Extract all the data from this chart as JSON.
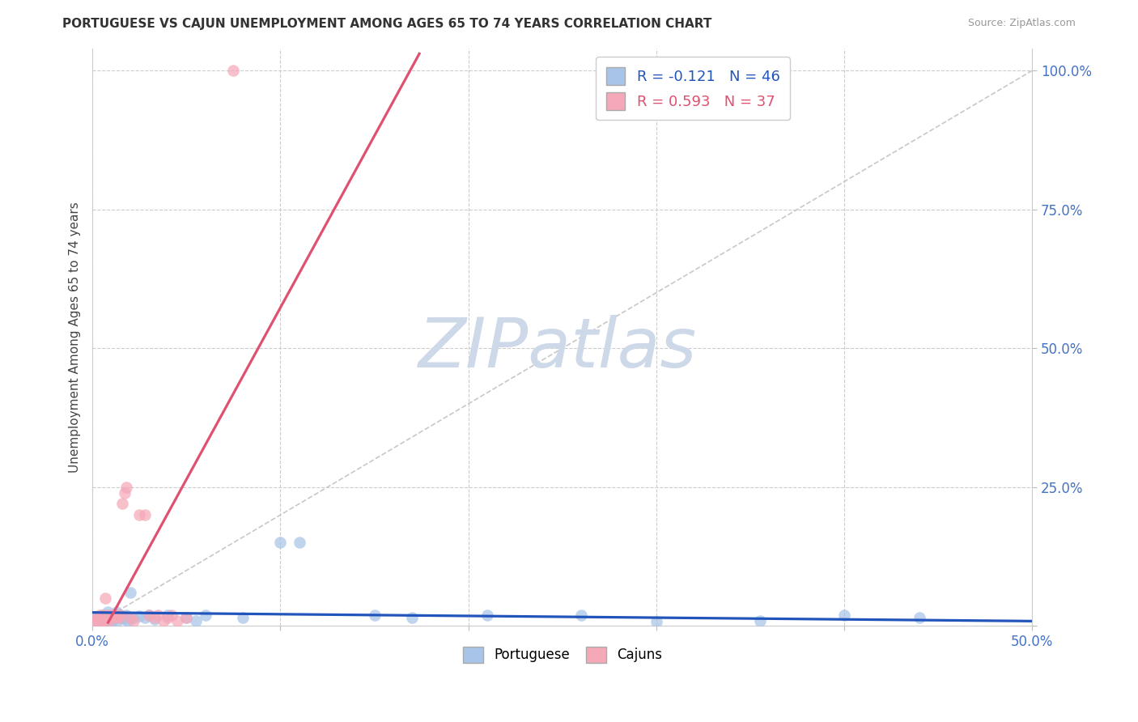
{
  "title": "PORTUGUESE VS CAJUN UNEMPLOYMENT AMONG AGES 65 TO 74 YEARS CORRELATION CHART",
  "source": "Source: ZipAtlas.com",
  "ylabel": "Unemployment Among Ages 65 to 74 years",
  "xlim": [
    0.0,
    0.5
  ],
  "ylim": [
    0.0,
    1.04
  ],
  "portuguese_R": -0.121,
  "portuguese_N": 46,
  "cajun_R": 0.593,
  "cajun_N": 37,
  "portuguese_color": "#a8c4e8",
  "cajun_color": "#f4a8b8",
  "portuguese_line_color": "#2255bb",
  "cajun_line_color": "#e05070",
  "diagonal_color": "#c8c8c8",
  "watermark_text": "ZIPatlas",
  "watermark_color": "#cdd8e8",
  "background_color": "#ffffff",
  "grid_color": "#cccccc",
  "tick_label_color": "#4472c4",
  "title_color": "#333333",
  "source_color": "#999999",
  "portuguese_x": [
    0.002,
    0.003,
    0.004,
    0.005,
    0.005,
    0.006,
    0.006,
    0.007,
    0.008,
    0.008,
    0.009,
    0.01,
    0.01,
    0.011,
    0.011,
    0.012,
    0.013,
    0.013,
    0.014,
    0.015,
    0.015,
    0.016,
    0.017,
    0.018,
    0.019,
    0.02,
    0.022,
    0.025,
    0.028,
    0.03,
    0.033,
    0.04,
    0.05,
    0.055,
    0.06,
    0.08,
    0.1,
    0.11,
    0.15,
    0.17,
    0.21,
    0.26,
    0.3,
    0.355,
    0.4,
    0.44
  ],
  "portuguese_y": [
    0.015,
    0.008,
    0.012,
    0.01,
    0.02,
    0.015,
    0.018,
    0.012,
    0.025,
    0.01,
    0.015,
    0.018,
    0.008,
    0.012,
    0.02,
    0.015,
    0.008,
    0.025,
    0.015,
    0.018,
    0.02,
    0.015,
    0.012,
    0.02,
    0.01,
    0.06,
    0.015,
    0.018,
    0.015,
    0.02,
    0.012,
    0.02,
    0.015,
    0.01,
    0.02,
    0.015,
    0.15,
    0.15,
    0.02,
    0.015,
    0.02,
    0.02,
    0.008,
    0.01,
    0.02,
    0.015
  ],
  "cajun_x": [
    0.001,
    0.002,
    0.003,
    0.003,
    0.004,
    0.005,
    0.005,
    0.006,
    0.006,
    0.007,
    0.007,
    0.008,
    0.008,
    0.009,
    0.01,
    0.01,
    0.011,
    0.012,
    0.013,
    0.014,
    0.015,
    0.016,
    0.017,
    0.018,
    0.02,
    0.022,
    0.025,
    0.028,
    0.03,
    0.033,
    0.035,
    0.038,
    0.04,
    0.042,
    0.045,
    0.05,
    0.075
  ],
  "cajun_y": [
    0.008,
    0.012,
    0.01,
    0.015,
    0.02,
    0.015,
    0.008,
    0.02,
    0.01,
    0.012,
    0.05,
    0.015,
    0.02,
    0.01,
    0.015,
    0.02,
    0.02,
    0.015,
    0.02,
    0.015,
    0.02,
    0.22,
    0.24,
    0.25,
    0.015,
    0.01,
    0.2,
    0.2,
    0.02,
    0.015,
    0.02,
    0.01,
    0.015,
    0.02,
    0.01,
    0.015,
    1.0
  ]
}
